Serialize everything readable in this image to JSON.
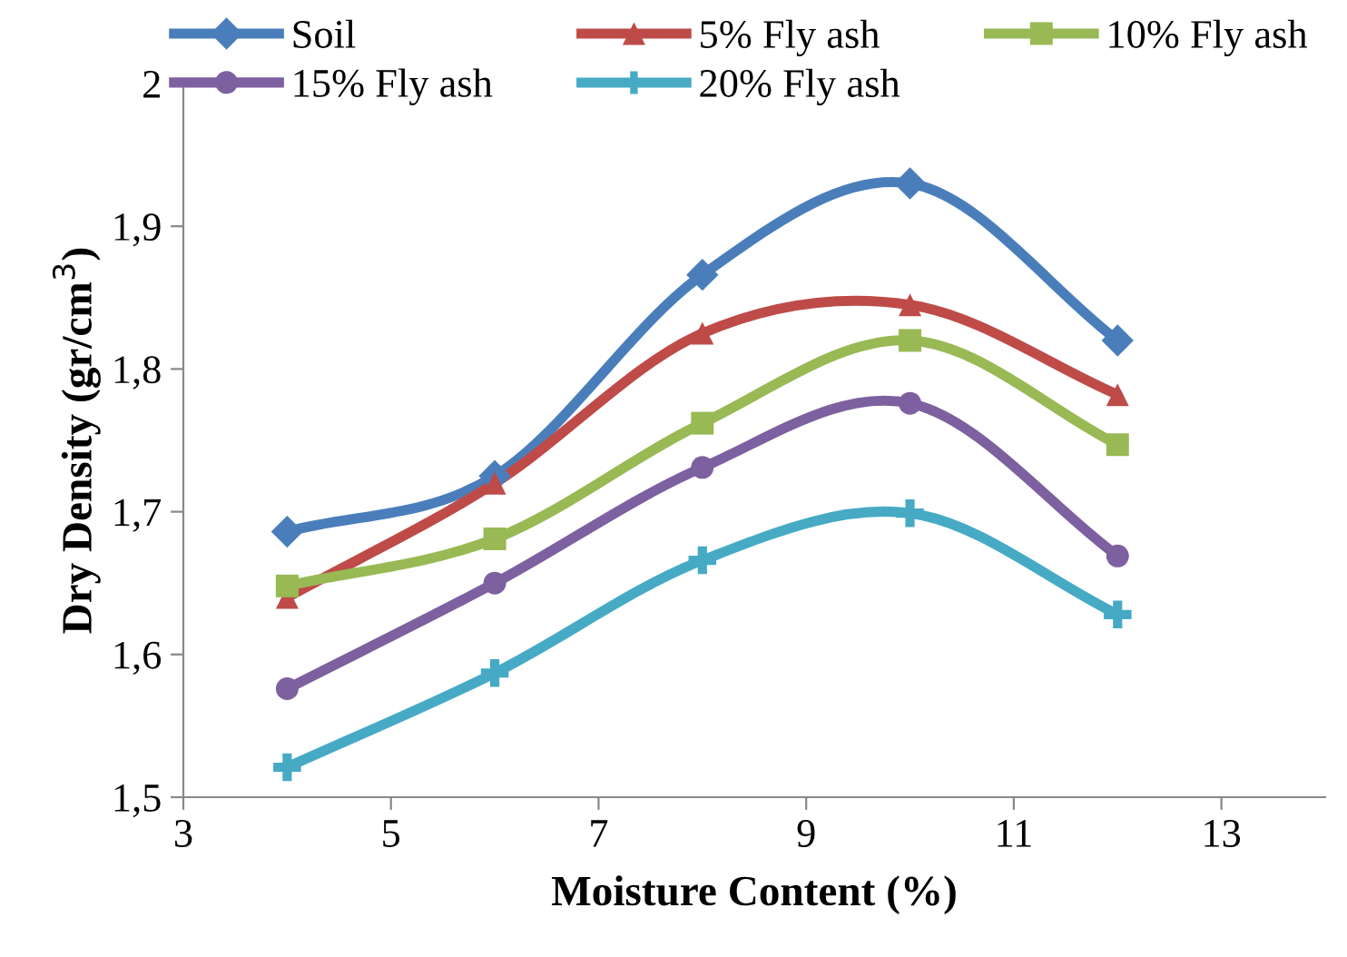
{
  "chart_data": {
    "type": "line",
    "xlabel": "Moisture Content (%)",
    "ylabel": "Dry Density (gr/cm$^{3}$)",
    "x": [
      4,
      6,
      8,
      10,
      12
    ],
    "series": [
      {
        "name": "Soil",
        "color": "#4a7ebb",
        "marker": "diamond",
        "values": [
          1.686,
          1.725,
          1.866,
          1.93,
          1.82
        ]
      },
      {
        "name": "5% Fly ash",
        "color": "#be4b48",
        "marker": "triangle",
        "values": [
          1.64,
          1.72,
          1.825,
          1.845,
          1.782
        ]
      },
      {
        "name": "10% Fly ash",
        "color": "#98b954",
        "marker": "square",
        "values": [
          1.648,
          1.681,
          1.762,
          1.82,
          1.747
        ]
      },
      {
        "name": "15% Fly ash",
        "color": "#7d60a0",
        "marker": "circle",
        "values": [
          1.576,
          1.65,
          1.731,
          1.776,
          1.669
        ]
      },
      {
        "name": "20% Fly ash",
        "color": "#46aac5",
        "marker": "cross",
        "values": [
          1.521,
          1.587,
          1.666,
          1.699,
          1.628
        ]
      }
    ],
    "xlim": [
      3,
      14
    ],
    "xticks": [
      3,
      5,
      7,
      9,
      11,
      13
    ],
    "ylim": [
      1.5,
      2.0
    ],
    "yticks": [
      {
        "value": 1.5,
        "label": "1,5"
      },
      {
        "value": 1.6,
        "label": "1,6"
      },
      {
        "value": 1.7,
        "label": "1,7"
      },
      {
        "value": 1.8,
        "label": "1,8"
      },
      {
        "value": 1.9,
        "label": "1,9"
      },
      {
        "value": 2,
        "label": "2"
      }
    ],
    "grid": false,
    "legend": "top",
    "line_style": "solid"
  }
}
